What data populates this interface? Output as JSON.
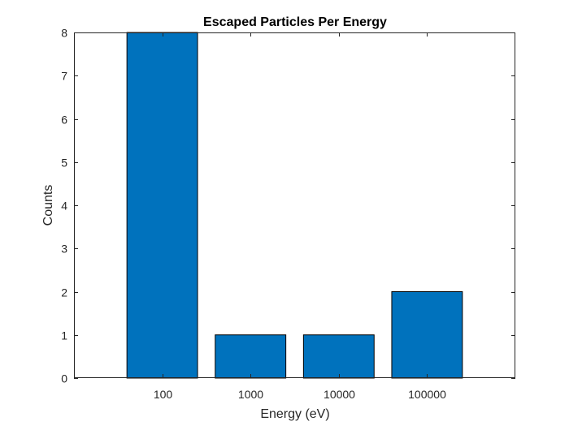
{
  "chart_data": {
    "type": "bar",
    "title": "Escaped Particles Per Energy",
    "xlabel": "Energy (eV)",
    "ylabel": "Counts",
    "categories": [
      "100",
      "1000",
      "10000",
      "100000"
    ],
    "values": [
      8,
      1,
      1,
      2
    ],
    "ylim": [
      0,
      8
    ],
    "yticks": [
      0,
      1,
      2,
      3,
      4,
      5,
      6,
      7,
      8
    ],
    "grid": false,
    "legend": "none",
    "colors": {
      "bar_fill": "#0072BD",
      "bar_edge": "#000000",
      "axis": "#262626",
      "background": "#FFFFFF"
    }
  }
}
